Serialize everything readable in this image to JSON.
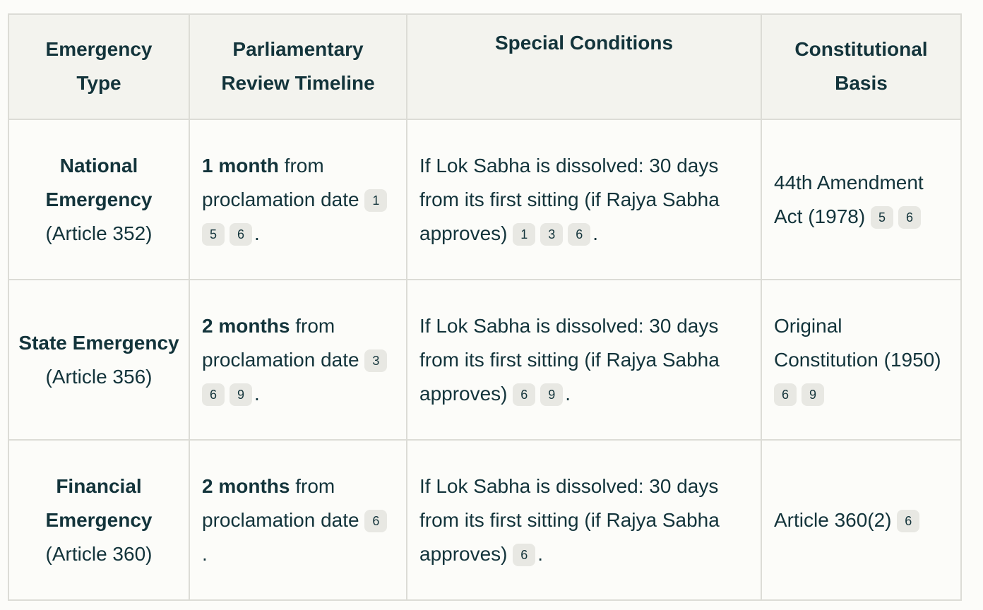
{
  "headers": [
    {
      "label": "Emergency Type"
    },
    {
      "label": "Parliamentary Review Timeline"
    },
    {
      "label": "Special Conditions"
    },
    {
      "label": "Constitutional Basis"
    }
  ],
  "rows": [
    {
      "type_name": "National Emergency",
      "type_article": "(Article 352)",
      "timeline_bold": "1 month",
      "timeline_rest": " from proclamation date",
      "timeline_cites": [
        "1",
        "5",
        "6"
      ],
      "conditions": "If Lok Sabha is dissolved: 30 days from its first sitting (if Rajya Sabha approves)",
      "conditions_cites": [
        "1",
        "3",
        "6"
      ],
      "basis": "44th Amendment Act (1978)",
      "basis_cites": [
        "5",
        "6"
      ]
    },
    {
      "type_name": "State Emergency",
      "type_article": "(Article 356)",
      "timeline_bold": "2 months",
      "timeline_rest": " from proclamation date",
      "timeline_cites": [
        "3",
        "6",
        "9"
      ],
      "conditions": "If Lok Sabha is dissolved: 30 days from its first sitting (if Rajya Sabha approves)",
      "conditions_cites": [
        "6",
        "9"
      ],
      "basis": "Original Constitution (1950)",
      "basis_cites": [
        "6",
        "9"
      ]
    },
    {
      "type_name": "Financial Emergency",
      "type_article": "(Article 360)",
      "timeline_bold": "2 months",
      "timeline_rest": " from proclamation date",
      "timeline_cites": [
        "6"
      ],
      "conditions": "If Lok Sabha is dissolved: 30 days from its first sitting (if Rajya Sabha approves)",
      "conditions_cites": [
        "6"
      ],
      "basis": "Article 360(2)",
      "basis_cites": [
        "6"
      ]
    }
  ],
  "period": "."
}
